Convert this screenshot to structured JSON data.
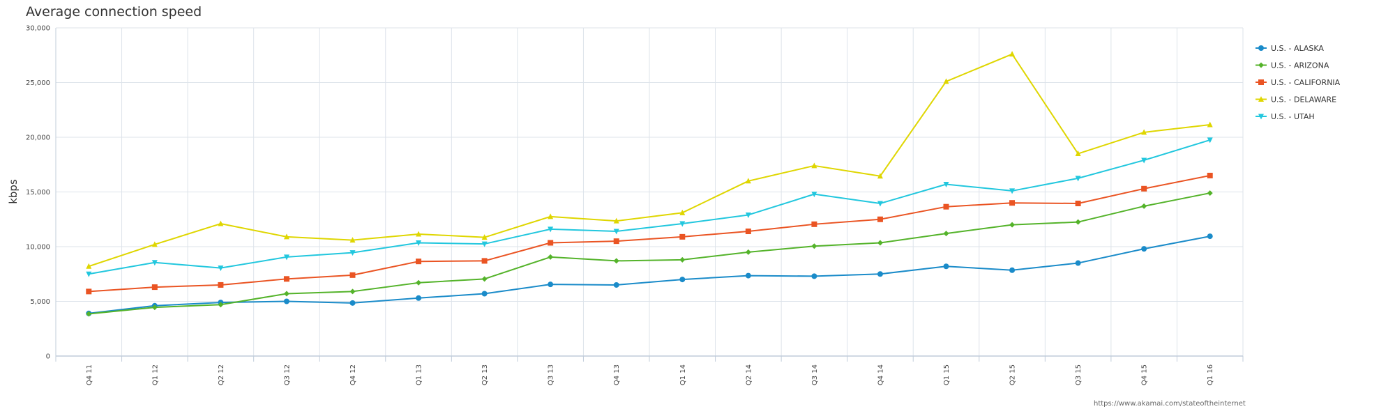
{
  "chart_data": {
    "type": "line",
    "title": "Average connection speed",
    "xlabel": "",
    "ylabel": "kbps",
    "ylim": [
      0,
      30000
    ],
    "yticks": [
      0,
      5000,
      10000,
      15000,
      20000,
      25000,
      30000
    ],
    "ytick_labels": [
      "0",
      "5,000",
      "10,000",
      "15,000",
      "20,000",
      "25,000",
      "30,000"
    ],
    "grid": true,
    "legend_position": "right",
    "categories": [
      "Q4 11",
      "Q1 12",
      "Q2 12",
      "Q3 12",
      "Q4 12",
      "Q1 13",
      "Q2 13",
      "Q3 13",
      "Q4 13",
      "Q1 14",
      "Q2 14",
      "Q3 14",
      "Q4 14",
      "Q1 15",
      "Q2 15",
      "Q3 15",
      "Q4 15",
      "Q1 16"
    ],
    "series": [
      {
        "name": "U.S. - ALASKA",
        "color": "#1a8bc9",
        "marker": "circle",
        "values": [
          3900,
          4600,
          4900,
          5000,
          4850,
          5300,
          5700,
          6550,
          6500,
          7000,
          7350,
          7300,
          7500,
          8200,
          7850,
          8500,
          9800,
          10950
        ]
      },
      {
        "name": "U.S. - ARIZONA",
        "color": "#54b32a",
        "marker": "diamond",
        "values": [
          3850,
          4450,
          4700,
          5700,
          5900,
          6700,
          7050,
          9050,
          8700,
          8800,
          9500,
          10050,
          10350,
          11200,
          12000,
          12250,
          13700,
          14900
        ]
      },
      {
        "name": "U.S. - CALIFORNIA",
        "color": "#ea5423",
        "marker": "square",
        "values": [
          5900,
          6300,
          6500,
          7050,
          7400,
          8650,
          8700,
          10350,
          10500,
          10900,
          11400,
          12050,
          12500,
          13650,
          14000,
          13950,
          15300,
          16500
        ]
      },
      {
        "name": "U.S. - DELAWARE",
        "color": "#dfd600",
        "marker": "triangle",
        "values": [
          8200,
          10200,
          12100,
          10900,
          10600,
          11150,
          10850,
          12750,
          12350,
          13100,
          16000,
          17400,
          16450,
          25100,
          27600,
          18500,
          20450,
          21150
        ]
      },
      {
        "name": "U.S. - UTAH",
        "color": "#22c7de",
        "marker": "triangle-down",
        "values": [
          7500,
          8550,
          8050,
          9050,
          9450,
          10350,
          10250,
          11600,
          11400,
          12100,
          12900,
          14800,
          13950,
          15700,
          15100,
          16250,
          17900,
          19750
        ]
      }
    ],
    "annotations": [
      "https://www.akamai.com/stateoftheinternet"
    ]
  }
}
